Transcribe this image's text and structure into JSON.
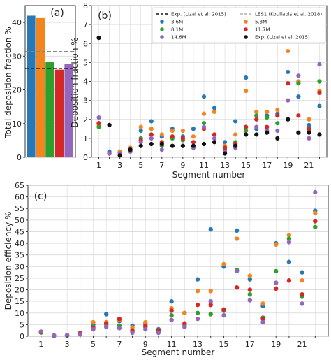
{
  "colors": {
    "3.6M": "#2878b5",
    "5.3M": "#f2851e",
    "8.1M": "#2ca02c",
    "11.7M": "#d62728",
    "14.6M": "#9467bd",
    "exp": "#111111",
    "grid": "#d8d8d8"
  },
  "chart_data": [
    {
      "id": "a",
      "type": "bar",
      "panel_label": "(a)",
      "ylabel": "Total deposition fraction %",
      "xlabel": "",
      "ylim": [
        0,
        45
      ],
      "yticks": [
        0,
        10,
        20,
        30,
        40
      ],
      "grid": true,
      "series": [
        {
          "name": "3.6M",
          "value": 42
        },
        {
          "name": "5.3M",
          "value": 41.3
        },
        {
          "name": "8.1M",
          "value": 28.2
        },
        {
          "name": "11.7M",
          "value": 26.0
        },
        {
          "name": "14.6M",
          "value": 27.6
        }
      ],
      "reference_lines": [
        {
          "name": "Exp. (Lizal et al. 2015)",
          "value": 26.3,
          "style": "dashed",
          "color": "#111111"
        },
        {
          "name": "LES1 (Koullapis et al. 2018)",
          "value": 31.4,
          "style": "dashed",
          "color": "#888888"
        }
      ]
    },
    {
      "id": "b",
      "type": "scatter",
      "panel_label": "(b)",
      "xlabel": "Segment number",
      "ylabel": "Deposition fraction %",
      "xlim": [
        0.3,
        22.7
      ],
      "ylim": [
        0,
        8
      ],
      "xticks": [
        1,
        3,
        5,
        7,
        9,
        11,
        13,
        15,
        17,
        19,
        21
      ],
      "yticks": [
        0,
        1,
        2,
        3,
        4,
        5,
        6,
        7,
        8
      ],
      "grid": true,
      "legend": {
        "placement": "top",
        "entries": [
          {
            "label": "Exp. (Lizal et al. 2015)",
            "kind": "dash",
            "color": "#111111"
          },
          {
            "label": "LES1 (Koullapis et al. 2018)",
            "kind": "dash",
            "color": "#888888"
          },
          {
            "label": "3.6M",
            "kind": "dot",
            "color": "#2878b5"
          },
          {
            "label": "5.3M",
            "kind": "dot",
            "color": "#f2851e"
          },
          {
            "label": "8.1M",
            "kind": "dot",
            "color": "#2ca02c"
          },
          {
            "label": "11.7M",
            "kind": "dot",
            "color": "#d62728"
          },
          {
            "label": "14.6M",
            "kind": "dot",
            "color": "#9467bd"
          },
          {
            "label": "Exp. (Lizal et al. 2015)",
            "kind": "dot",
            "color": "#111111"
          }
        ]
      },
      "x": [
        1,
        2,
        3,
        4,
        5,
        6,
        7,
        8,
        9,
        10,
        11,
        12,
        13,
        14,
        15,
        16,
        17,
        18,
        19,
        20,
        21,
        22
      ],
      "series": [
        {
          "name": "3.6M",
          "values": [
            1.8,
            0.3,
            0.3,
            0.4,
            1.4,
            1.9,
            1.1,
            1.5,
            1.1,
            1.5,
            3.2,
            2.6,
            0.8,
            1.9,
            4.2,
            1.5,
            2.2,
            2.3,
            4.5,
            3.2,
            1.7,
            2.7
          ]
        },
        {
          "name": "5.3M",
          "values": [
            1.7,
            0.2,
            0.3,
            0.5,
            1.6,
            1.5,
            1.2,
            1.4,
            1.4,
            1.1,
            2.3,
            2.4,
            0.6,
            1.2,
            3.5,
            2.4,
            2.4,
            2.5,
            5.6,
            4.0,
            2.0,
            3.5
          ]
        },
        {
          "name": "8.1M",
          "values": [
            1.6,
            0.2,
            0.2,
            0.3,
            1.0,
            1.2,
            0.6,
            1.0,
            0.9,
            0.8,
            1.8,
            1.2,
            0.4,
            0.8,
            1.4,
            2.2,
            2.1,
            1.8,
            3.9,
            3.9,
            1.4,
            4.0
          ]
        },
        {
          "name": "11.7M",
          "values": [
            1.8,
            0.2,
            0.2,
            0.4,
            0.9,
            1.2,
            0.8,
            1.1,
            1.0,
            0.8,
            1.5,
            1.2,
            0.5,
            0.7,
            1.6,
            2.0,
            1.6,
            2.2,
            3.9,
            2.2,
            1.5,
            3.4
          ]
        },
        {
          "name": "14.6M",
          "values": [
            2.1,
            0.2,
            0.2,
            0.3,
            0.8,
            1.0,
            0.4,
            0.6,
            0.6,
            0.5,
            1.6,
            1.0,
            0.3,
            0.5,
            1.2,
            1.6,
            1.4,
            1.4,
            3.0,
            4.3,
            1.0,
            4.9
          ]
        },
        {
          "name": "Exp. (Lizal et al. 2015)",
          "values": [
            6.3,
            1.7,
            0.1,
            0.4,
            0.6,
            0.7,
            0.7,
            0.6,
            0.6,
            0.6,
            0.7,
            0.8,
            0.2,
            0.6,
            1.2,
            1.2,
            1.3,
            1.0,
            2.0,
            1.3,
            1.3,
            1.2
          ]
        }
      ]
    },
    {
      "id": "c",
      "type": "scatter",
      "panel_label": "(c)",
      "xlabel": "Segment number",
      "ylabel": "Deposition efficiency %",
      "xlim": [
        0,
        23
      ],
      "ylim": [
        0,
        65
      ],
      "xticks": [
        1,
        3,
        5,
        7,
        9,
        11,
        13,
        15,
        17,
        19,
        21
      ],
      "yticks": [
        0,
        5,
        10,
        15,
        20,
        25,
        30,
        35,
        40,
        45,
        50,
        55,
        60,
        65
      ],
      "grid": true,
      "x": [
        1,
        2,
        3,
        4,
        5,
        6,
        7,
        8,
        9,
        10,
        11,
        12,
        13,
        14,
        15,
        16,
        17,
        18,
        19,
        20,
        21,
        22
      ],
      "series": [
        {
          "name": "3.6M",
          "values": [
            1.8,
            0.3,
            0.5,
            1.3,
            5.0,
            9.5,
            6.5,
            4.5,
            5.5,
            3.0,
            15.0,
            10.0,
            24.5,
            46.0,
            30.0,
            45.5,
            24.5,
            13.0,
            40.0,
            32.0,
            27.5,
            54.0
          ]
        },
        {
          "name": "5.3M",
          "values": [
            1.7,
            0.2,
            0.4,
            1.4,
            6.0,
            6.0,
            7.0,
            3.8,
            6.0,
            2.5,
            12.0,
            10.0,
            19.5,
            19.5,
            31.0,
            42.0,
            26.0,
            14.0,
            39.5,
            43.5,
            24.0,
            53.0
          ]
        },
        {
          "name": "8.1M",
          "values": [
            1.6,
            0.2,
            0.3,
            1.0,
            4.0,
            5.0,
            4.5,
            2.0,
            4.0,
            2.0,
            9.0,
            5.0,
            10.0,
            9.5,
            11.0,
            28.5,
            18.0,
            8.0,
            28.0,
            42.0,
            17.0,
            47.0
          ]
        },
        {
          "name": "11.7M",
          "values": [
            1.8,
            0.2,
            0.3,
            1.2,
            3.5,
            5.5,
            7.5,
            2.5,
            4.5,
            2.5,
            11.0,
            5.5,
            13.5,
            13.5,
            11.5,
            21.0,
            20.0,
            7.5,
            20.5,
            24.0,
            18.0,
            49.5
          ]
        },
        {
          "name": "14.6M",
          "values": [
            2.0,
            0.2,
            0.3,
            0.8,
            3.0,
            4.0,
            3.5,
            1.5,
            3.0,
            1.5,
            7.0,
            4.0,
            7.5,
            15.0,
            9.0,
            28.0,
            15.5,
            6.0,
            23.0,
            40.5,
            14.0,
            62.0
          ]
        }
      ]
    }
  ]
}
